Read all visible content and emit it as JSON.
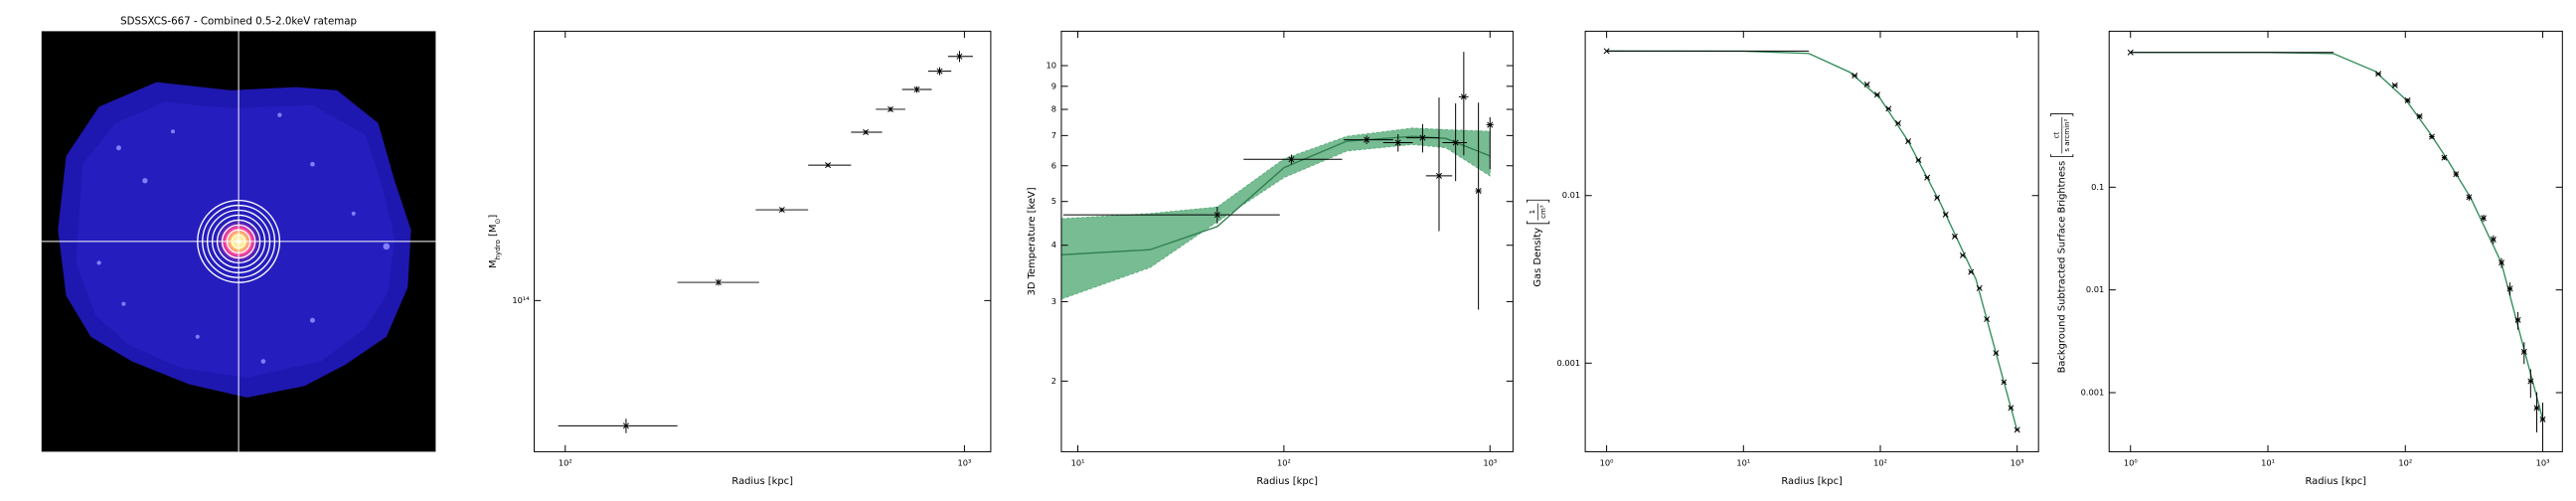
{
  "ratemap": {
    "title": "SDSSXCS-667 - Combined 0.5-2.0keV ratemap"
  },
  "chart_data": [
    {
      "type": "scatter",
      "xlabel": "Radius [kpc]",
      "ylabel": [
        {
          "text": "M"
        },
        {
          "text": "hydro",
          "sub": true
        },
        {
          "text": " [M"
        },
        {
          "text": "⊙",
          "sub": true
        },
        {
          "text": "]"
        }
      ],
      "xlog": true,
      "ylog": true,
      "xlim": [
        83.6,
        1164
      ],
      "ylim": [
        43000000000000.0,
        450000000000000.0
      ],
      "xticks": [
        {
          "value": 100,
          "label": "10²"
        },
        {
          "value": 1000,
          "label": "10³"
        }
      ],
      "yticks": [
        {
          "value": 100000000000000.0,
          "label": "10¹⁴"
        }
      ],
      "series": [
        {
          "kind": "errorbar",
          "marker": "x",
          "color": "#000000",
          "x": [
            142,
            242,
            349,
            455,
            566,
            653,
            760,
            867,
            972
          ],
          "y": [
            49700000000000.0,
            110700000000000.0,
            166000000000000.0,
            213000000000000.0,
            256000000000000.0,
            291000000000000.0,
            325000000000000.0,
            360000000000000.0,
            391000000000000.0
          ],
          "x_err_minus": [
            46,
            51,
            49,
            49,
            46,
            53,
            62,
            56,
            62
          ],
          "x_err_plus": [
            49,
            64,
            57,
            65,
            56,
            58,
            68,
            60,
            78
          ],
          "y_err_minus": [
            2000000000000.0,
            2000000000000.0,
            2000000000000.0,
            2000000000000.0,
            3000000000000.0,
            4000000000000.0,
            6000000000000.0,
            8000000000000.0,
            12000000000000.0
          ],
          "y_err_plus": [
            2000000000000.0,
            2000000000000.0,
            2000000000000.0,
            2000000000000.0,
            3000000000000.0,
            4000000000000.0,
            6000000000000.0,
            8000000000000.0,
            12000000000000.0
          ]
        }
      ]
    },
    {
      "type": "scatter",
      "xlabel": "Radius [kpc]",
      "ylabel": "3D Temperature [keV]",
      "xlog": true,
      "ylog": true,
      "xlim": [
        8.32,
        1293
      ],
      "ylim": [
        1.395,
        11.92
      ],
      "xticks": [
        {
          "value": 10,
          "label": "10¹"
        },
        {
          "value": 100,
          "label": "10²"
        },
        {
          "value": 1000,
          "label": "10³"
        }
      ],
      "yticks": [
        2,
        3,
        4,
        5,
        6,
        7,
        8,
        9,
        10
      ],
      "series": [
        {
          "kind": "band",
          "color": "#5fb07f",
          "x": [
            8.32,
            22.4,
            47.5,
            100,
            202,
            421,
            610,
            1000
          ],
          "lower": [
            3.04,
            3.57,
            4.51,
            5.65,
            6.47,
            6.69,
            6.58,
            5.7
          ],
          "upper": [
            4.58,
            4.7,
            4.86,
            6.21,
            6.97,
            7.27,
            7.21,
            7.15
          ]
        },
        {
          "kind": "line",
          "color": "#2f7d50",
          "x": [
            8.32,
            22.4,
            47.5,
            100,
            202,
            421,
            610,
            1000
          ],
          "values": [
            3.81,
            3.91,
            4.4,
            5.94,
            6.8,
            6.97,
            6.9,
            6.31
          ]
        },
        {
          "kind": "errorbar",
          "marker": "x",
          "color": "#000000",
          "x": [
            47.5,
            108.7,
            252,
            358,
            471,
            566,
            681,
            746,
            879,
            1000
          ],
          "y": [
            4.67,
            6.2,
            6.85,
            6.75,
            6.92,
            5.7,
            6.75,
            8.53,
            5.28,
            7.39
          ],
          "x_err_minus": [
            39,
            45,
            57,
            55,
            79,
            77,
            93,
            40,
            30,
            40
          ],
          "x_err_plus": [
            48,
            83,
            87,
            64,
            95,
            90,
            92,
            40,
            30,
            40
          ],
          "y_err_minus": [
            0.2,
            0.15,
            0.15,
            0.3,
            0.5,
            1.4,
            1.2,
            2.2,
            2.4,
            1.5
          ],
          "y_err_plus": [
            0.2,
            0.15,
            0.15,
            0.3,
            0.5,
            2.8,
            1.5,
            2.2,
            3,
            0.3
          ]
        }
      ]
    },
    {
      "type": "scatter",
      "xlabel": "Radius [kpc]",
      "ylabel": "Gas Density",
      "ylabel_fraction": {
        "num": "1",
        "den": "cm³"
      },
      "xlog": true,
      "ylog": true,
      "xlim": [
        0.698,
        1432
      ],
      "ylim": [
        0.000296,
        0.0957
      ],
      "xticks": [
        {
          "value": 1,
          "label": "10⁰"
        },
        {
          "value": 10,
          "label": "10¹"
        },
        {
          "value": 100,
          "label": "10²"
        },
        {
          "value": 1000,
          "label": "10³"
        }
      ],
      "yticks": [
        0.01,
        0.001
      ],
      "series": [
        {
          "kind": "line",
          "color": "#2e8b57",
          "x": [
            1,
            10,
            30,
            60,
            100,
            160,
            280,
            500,
            700,
            1000
          ],
          "values": [
            0.0729,
            0.0727,
            0.0705,
            0.0544,
            0.0379,
            0.0211,
            0.00873,
            0.00316,
            0.00115,
            0.000396
          ]
        },
        {
          "kind": "errorbar",
          "marker": "x",
          "color": "#000000",
          "x": [
            1,
            65,
            80,
            95,
            115,
            135,
            160,
            190,
            220,
            260,
            300,
            350,
            400,
            460,
            530,
            600,
            700,
            800,
            900,
            1000
          ],
          "y": [
            0.0729,
            0.052,
            0.046,
            0.04,
            0.033,
            0.027,
            0.0211,
            0.0163,
            0.0128,
            0.0097,
            0.0077,
            0.0057,
            0.0044,
            0.0035,
            0.0028,
            0.00183,
            0.00115,
            0.00077,
            0.00054,
            0.0004
          ],
          "x_err_minus": [
            0,
            3,
            3,
            4,
            4,
            5,
            6,
            7,
            8,
            9,
            10,
            12,
            14,
            16,
            18,
            20,
            24,
            27,
            30,
            33
          ],
          "x_err_plus": [
            29,
            3,
            3,
            4,
            4,
            5,
            6,
            7,
            8,
            9,
            10,
            12,
            14,
            16,
            18,
            20,
            24,
            27,
            30,
            33
          ]
        }
      ]
    },
    {
      "type": "scatter",
      "xlabel": "Radius [kpc]",
      "ylabel": "Background Subtracted Surface Brightness",
      "ylabel_fraction": {
        "num": "ct",
        "den": "s arcmin²"
      },
      "xlog": true,
      "ylog": true,
      "xlim": [
        0.699,
        1390
      ],
      "ylim": [
        0.000266,
        3.3
      ],
      "xticks": [
        {
          "value": 1,
          "label": "10⁰"
        },
        {
          "value": 10,
          "label": "10¹"
        },
        {
          "value": 100,
          "label": "10²"
        },
        {
          "value": 1000,
          "label": "10³"
        }
      ],
      "yticks": [
        0.1,
        0.01,
        0.001
      ],
      "series": [
        {
          "kind": "line",
          "color": "#2e8b57",
          "x": [
            1,
            10,
            30,
            60,
            100,
            150,
            200,
            300,
            500,
            700,
            1000
          ],
          "values": [
            2.05,
            2.05,
            2.0,
            1.35,
            0.72,
            0.34,
            0.19,
            0.078,
            0.0184,
            0.0033,
            0.00055
          ]
        },
        {
          "kind": "errorbar",
          "marker": "x",
          "color": "#000000",
          "x": [
            1,
            63.7,
            84,
            104,
            127,
            156,
            192,
            234,
            291,
            371,
            437,
            501,
            578,
            660,
            732,
            816,
            905,
            1000
          ],
          "y": [
            2.05,
            1.27,
            0.98,
            0.7,
            0.49,
            0.31,
            0.194,
            0.134,
            0.08,
            0.05,
            0.031,
            0.0184,
            0.0103,
            0.0051,
            0.0025,
            0.00129,
            0.00071,
            0.00055
          ],
          "x_err_minus": [
            0,
            3,
            4,
            5,
            6,
            7,
            8,
            10,
            12,
            15,
            18,
            20,
            24,
            27,
            30,
            33,
            37,
            40
          ],
          "x_err_plus": [
            29,
            3,
            4,
            5,
            6,
            7,
            8,
            10,
            12,
            15,
            18,
            20,
            24,
            27,
            30,
            33,
            37,
            40
          ],
          "y_err_minus": [
            0.02,
            0.03,
            0.03,
            0.03,
            0.02,
            0.015,
            0.01,
            0.008,
            0.006,
            0.004,
            0.003,
            0.002,
            0.0015,
            0.001,
            0.0006,
            0.0004,
            0.0003,
            0.00025
          ],
          "y_err_plus": [
            0.02,
            0.03,
            0.03,
            0.03,
            0.02,
            0.015,
            0.01,
            0.008,
            0.006,
            0.004,
            0.003,
            0.002,
            0.0015,
            0.001,
            0.0006,
            0.0004,
            0.0003,
            0.00025
          ]
        }
      ]
    }
  ]
}
